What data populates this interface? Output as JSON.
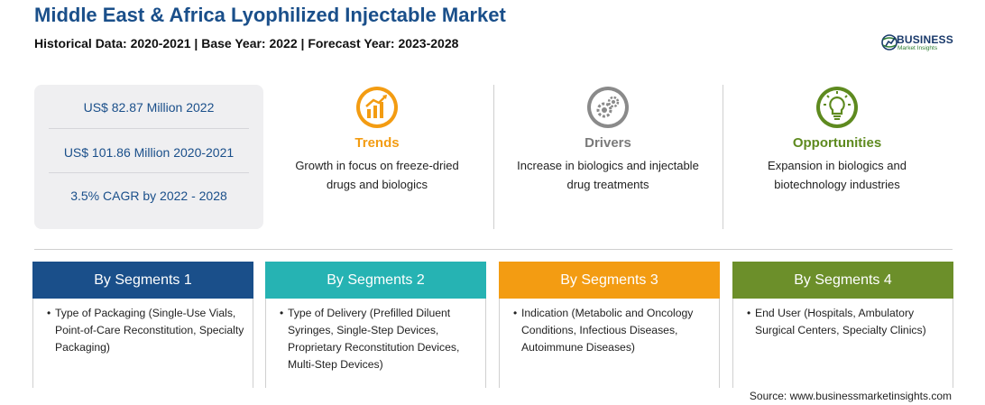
{
  "title": "Middle East & Africa Lyophilized Injectable Market",
  "subtitle": "Historical Data: 2020-2021 | Base Year: 2022 | Forecast Year: 2023-2028",
  "logo": {
    "word": "BUSINESS",
    "sub": "Market Insights"
  },
  "stats": [
    "US$ 82.87 Million 2022",
    "US$ 101.86 Million 2020-2021",
    "3.5% CAGR by 2022 - 2028"
  ],
  "features": {
    "trends": {
      "title": "Trends",
      "text": "Growth in focus on freeze-dried drugs and biologics",
      "icon": "trend-chart-icon",
      "color": "#f39c12"
    },
    "drivers": {
      "title": "Drivers",
      "text": "Increase in biologics and injectable drug treatments",
      "icon": "gears-icon",
      "color": "#7a7a7a"
    },
    "opportunities": {
      "title": "Opportunities",
      "text": "Expansion in biologics and biotechnology industries",
      "icon": "lightbulb-icon",
      "color": "#5e8a1f"
    }
  },
  "segments": [
    {
      "title": "By Segments 1",
      "text": "Type of Packaging (Single-Use Vials, Point-of-Care Reconstitution, Specialty Packaging)",
      "color": "#1a4f8a"
    },
    {
      "title": "By Segments 2",
      "text": "Type of Delivery (Prefilled Diluent Syringes, Single-Step Devices, Proprietary Reconstitution Devices, Multi-Step Devices)",
      "color": "#26b3b3"
    },
    {
      "title": "By Segments 3",
      "text": "Indication (Metabolic and Oncology Conditions, Infectious Diseases, Autoimmune Diseases)",
      "color": "#f39c12"
    },
    {
      "title": "By Segments 4",
      "text": "End User (Hospitals, Ambulatory Surgical Centers, Specialty Clinics)",
      "color": "#6c8f2a"
    }
  ],
  "source": "Source: www.businessmarketinsights.com"
}
